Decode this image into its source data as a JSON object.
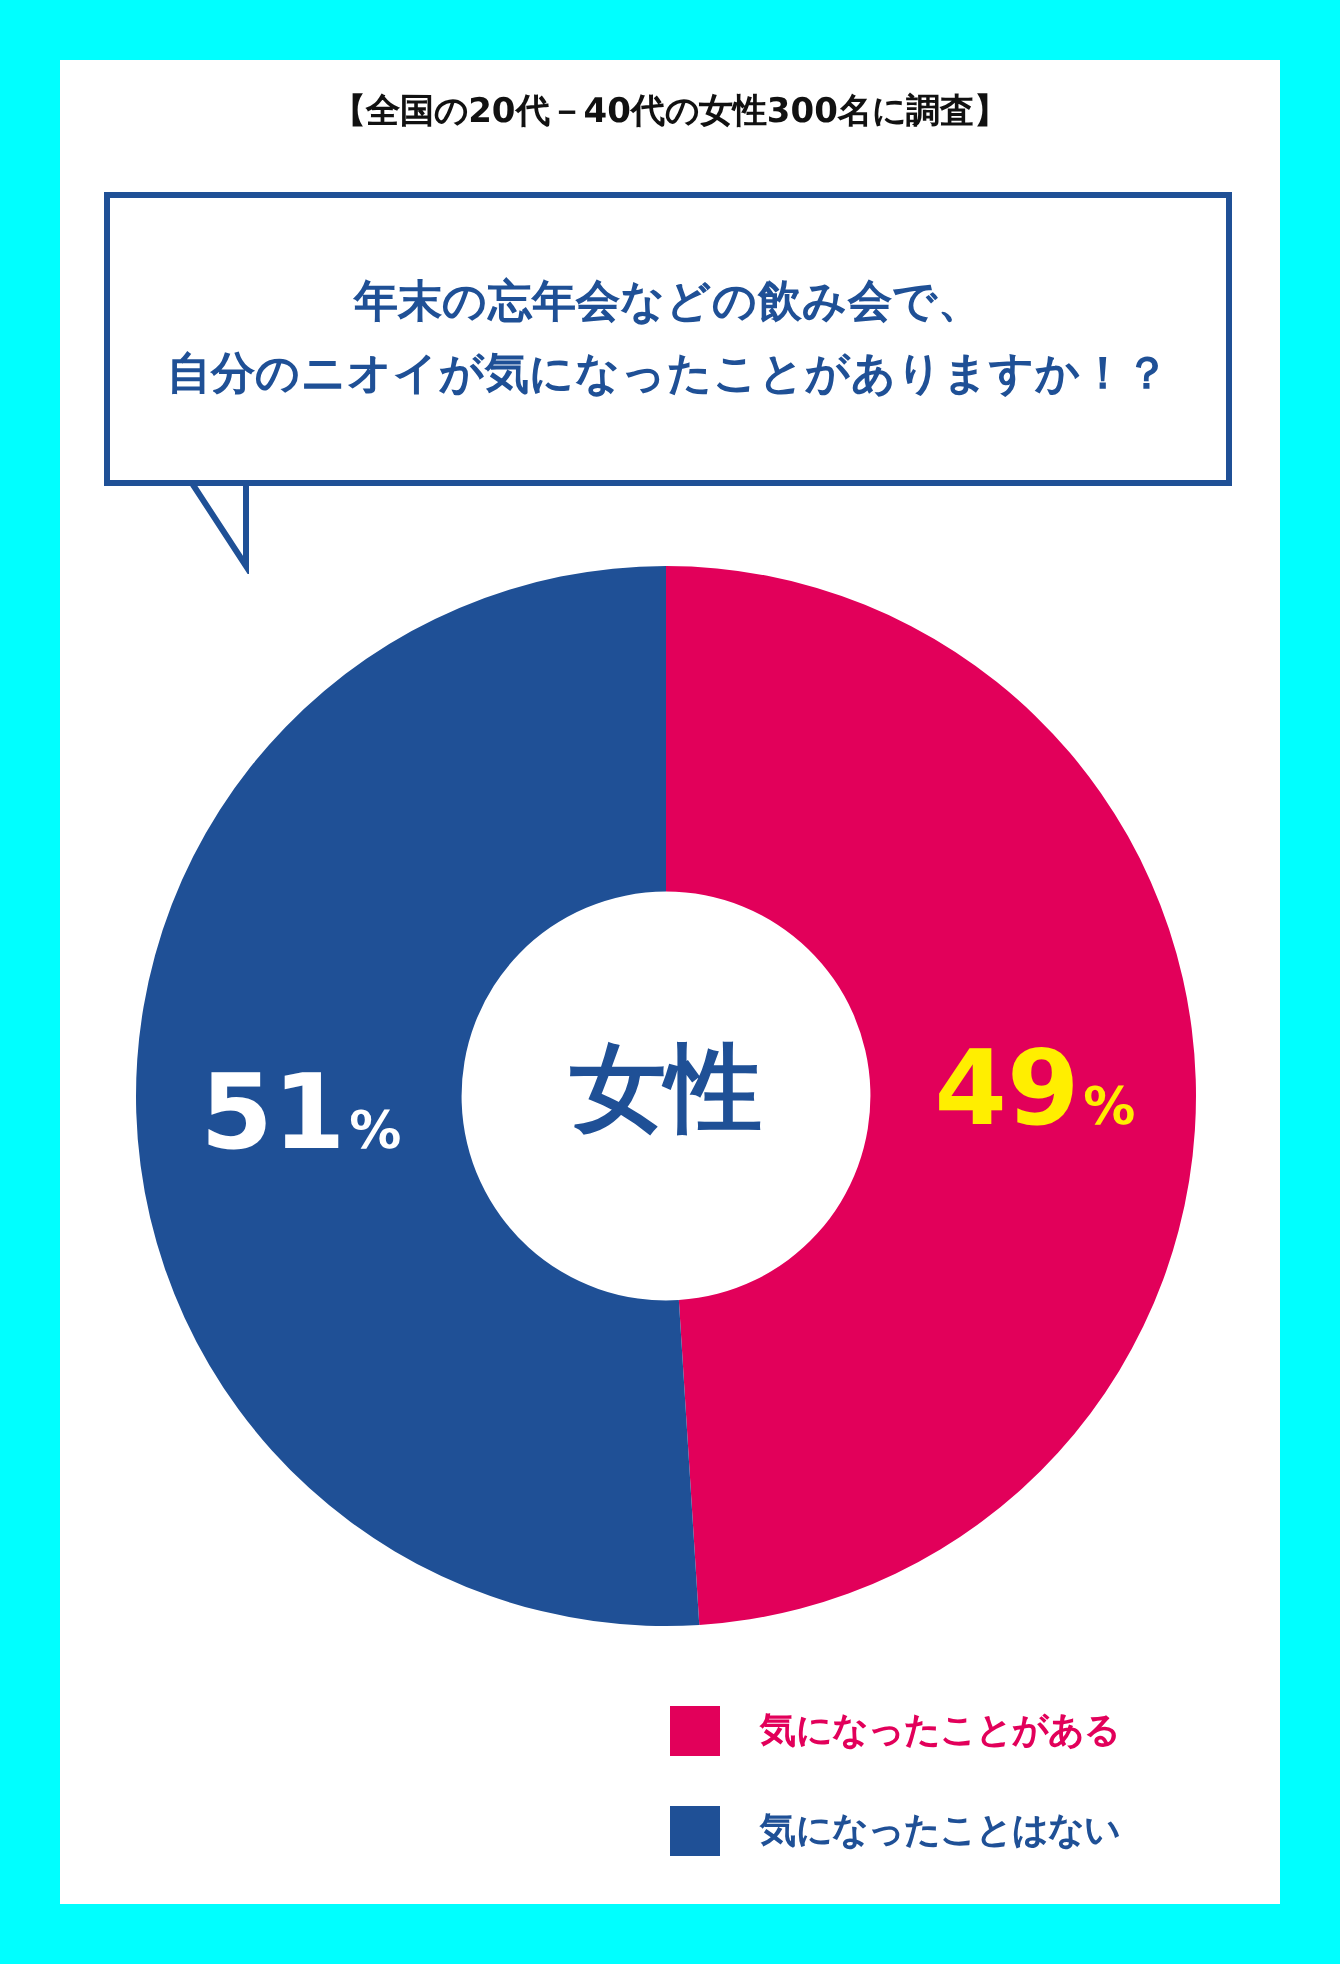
{
  "chart_data": {
    "type": "donut",
    "title": "【全国の20代－40代の女性300名に調査】",
    "subtitle": "年末の忘年会などの飲み会で、自分のニオイが気になったことがありますか！？",
    "categories": [
      "気になったことがある",
      "気になったことはない"
    ],
    "values": [
      49,
      51
    ],
    "colors": [
      "#e2005a",
      "#1f5096"
    ],
    "value_labels": [
      "49%",
      "51%"
    ],
    "annotations": [
      "女性"
    ],
    "legend": "bottom right"
  }
}
